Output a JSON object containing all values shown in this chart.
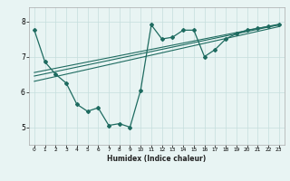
{
  "xlabel": "Humidex (Indice chaleur)",
  "bg_color": "#e8f4f3",
  "plot_bg_color": "#e8f4f3",
  "grid_color": "#c5dedd",
  "line_color": "#1e6b60",
  "xlim": [
    -0.5,
    23.5
  ],
  "ylim": [
    4.5,
    8.4
  ],
  "yticks": [
    5,
    6,
    7,
    8
  ],
  "xticks": [
    0,
    1,
    2,
    3,
    4,
    5,
    6,
    7,
    8,
    9,
    10,
    11,
    12,
    13,
    14,
    15,
    16,
    17,
    18,
    19,
    20,
    21,
    22,
    23
  ],
  "series1_x": [
    0,
    1,
    2,
    3,
    4,
    5,
    6,
    7,
    8,
    9,
    10,
    11,
    12,
    13,
    14,
    15,
    16,
    17,
    18,
    19,
    20,
    21,
    22,
    23
  ],
  "series1_y": [
    7.75,
    6.85,
    6.5,
    6.25,
    5.65,
    5.45,
    5.55,
    5.05,
    5.1,
    5.0,
    6.05,
    7.9,
    7.5,
    7.55,
    7.75,
    7.75,
    7.0,
    7.2,
    7.5,
    7.65,
    7.75,
    7.8,
    7.85,
    7.9
  ],
  "series2_x": [
    0,
    23
  ],
  "series2_y": [
    6.3,
    7.85
  ],
  "series3_x": [
    0,
    23
  ],
  "series3_y": [
    6.45,
    7.9
  ],
  "series4_x": [
    0,
    23
  ],
  "series4_y": [
    6.55,
    7.92
  ]
}
